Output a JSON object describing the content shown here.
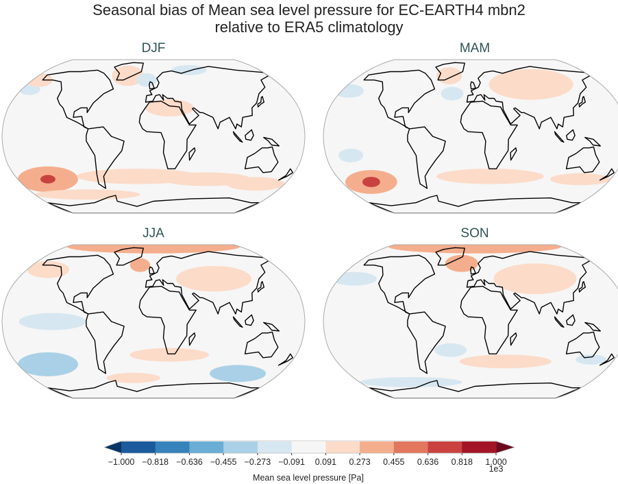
{
  "title_line1": "Seasonal bias of Mean sea level pressure for EC-EARTH4 mbn2",
  "title_line2": "relative to ERA5 climatology",
  "panels": [
    {
      "label": "DJF",
      "anomalies": [
        {
          "lon": -140,
          "lat": -45,
          "value": 400,
          "extent_deg": [
            40,
            15
          ]
        },
        {
          "lon": -140,
          "lat": -45,
          "value": 650,
          "extent_deg": [
            10,
            5
          ]
        },
        {
          "lon": -20,
          "lat": -42,
          "value": 200,
          "extent_deg": [
            80,
            9
          ]
        },
        {
          "lon": 70,
          "lat": -45,
          "value": 200,
          "extent_deg": [
            60,
            8
          ]
        },
        {
          "lon": 140,
          "lat": -50,
          "value": 200,
          "extent_deg": [
            40,
            8
          ]
        },
        {
          "lon": -100,
          "lat": -62,
          "value": 200,
          "extent_deg": [
            80,
            6
          ]
        },
        {
          "lon": 20,
          "lat": 30,
          "value": 150,
          "extent_deg": [
            30,
            10
          ]
        },
        {
          "lon": -40,
          "lat": 65,
          "value": 150,
          "extent_deg": [
            25,
            12
          ]
        },
        {
          "lon": -10,
          "lat": 60,
          "value": -200,
          "extent_deg": [
            15,
            8
          ]
        },
        {
          "lon": 60,
          "lat": 72,
          "value": -150,
          "extent_deg": [
            30,
            6
          ]
        },
        {
          "lon": -170,
          "lat": 50,
          "value": -200,
          "extent_deg": [
            15,
            7
          ]
        },
        {
          "lon": -170,
          "lat": 60,
          "value": 200,
          "extent_deg": [
            20,
            8
          ]
        }
      ]
    },
    {
      "label": "MAM",
      "anomalies": [
        {
          "lon": -140,
          "lat": -48,
          "value": 450,
          "extent_deg": [
            35,
            14
          ]
        },
        {
          "lon": -140,
          "lat": -48,
          "value": 650,
          "extent_deg": [
            12,
            6
          ]
        },
        {
          "lon": 20,
          "lat": -42,
          "value": 200,
          "extent_deg": [
            70,
            9
          ]
        },
        {
          "lon": 140,
          "lat": -45,
          "value": 150,
          "extent_deg": [
            40,
            7
          ]
        },
        {
          "lon": -150,
          "lat": -20,
          "value": -200,
          "extent_deg": [
            15,
            8
          ]
        },
        {
          "lon": 80,
          "lat": 55,
          "value": 250,
          "extent_deg": [
            60,
            18
          ]
        },
        {
          "lon": -40,
          "lat": 65,
          "value": 200,
          "extent_deg": [
            20,
            10
          ]
        },
        {
          "lon": -30,
          "lat": 45,
          "value": -200,
          "extent_deg": [
            15,
            8
          ]
        },
        {
          "lon": -170,
          "lat": 48,
          "value": -200,
          "extent_deg": [
            20,
            8
          ]
        }
      ]
    },
    {
      "label": "JJA",
      "anomalies": [
        {
          "lon": 0,
          "lat": 85,
          "value": 350,
          "extent_deg": [
            180,
            8
          ]
        },
        {
          "lon": -140,
          "lat": -45,
          "value": -350,
          "extent_deg": [
            40,
            14
          ]
        },
        {
          "lon": 120,
          "lat": -55,
          "value": -350,
          "extent_deg": [
            40,
            10
          ]
        },
        {
          "lon": 20,
          "lat": -35,
          "value": 200,
          "extent_deg": [
            50,
            8
          ]
        },
        {
          "lon": -30,
          "lat": -60,
          "value": 200,
          "extent_deg": [
            40,
            6
          ]
        },
        {
          "lon": 80,
          "lat": 45,
          "value": 150,
          "extent_deg": [
            50,
            15
          ]
        },
        {
          "lon": -20,
          "lat": 60,
          "value": 300,
          "extent_deg": [
            15,
            8
          ]
        },
        {
          "lon": -150,
          "lat": 55,
          "value": 150,
          "extent_deg": [
            30,
            10
          ]
        },
        {
          "lon": -120,
          "lat": 0,
          "value": -150,
          "extent_deg": [
            40,
            10
          ]
        }
      ]
    },
    {
      "label": "SON",
      "anomalies": [
        {
          "lon": 0,
          "lat": 85,
          "value": 350,
          "extent_deg": [
            180,
            8
          ]
        },
        {
          "lon": -20,
          "lat": 62,
          "value": 400,
          "extent_deg": [
            25,
            10
          ]
        },
        {
          "lon": 80,
          "lat": 45,
          "value": 200,
          "extent_deg": [
            55,
            18
          ]
        },
        {
          "lon": 40,
          "lat": -42,
          "value": 200,
          "extent_deg": [
            60,
            8
          ]
        },
        {
          "lon": -30,
          "lat": -30,
          "value": -200,
          "extent_deg": [
            20,
            8
          ]
        },
        {
          "lon": 150,
          "lat": -40,
          "value": -150,
          "extent_deg": [
            20,
            6
          ]
        },
        {
          "lon": -100,
          "lat": -65,
          "value": -250,
          "extent_deg": [
            80,
            6
          ]
        },
        {
          "lon": -160,
          "lat": 45,
          "value": -150,
          "extent_deg": [
            30,
            8
          ]
        }
      ]
    }
  ],
  "colorbar": {
    "label": "Mean sea level pressure [Pa]",
    "multiplier": "1e3",
    "ticks": [
      "−1.000",
      "−0.818",
      "−0.636",
      "−0.455",
      "−0.273",
      "−0.091",
      "0.091",
      "0.273",
      "0.455",
      "0.636",
      "0.818",
      "1.000"
    ],
    "colors": [
      "#1b5a9d",
      "#3683bb",
      "#6aaed6",
      "#a9d0e6",
      "#d7e7f1",
      "#f6f6f6",
      "#fcdbc9",
      "#f5ae8d",
      "#e3765f",
      "#c9423f",
      "#a31526"
    ],
    "under_color": "#0a3466",
    "over_color": "#6b0a1f",
    "range": [
      -1000,
      1000
    ]
  }
}
